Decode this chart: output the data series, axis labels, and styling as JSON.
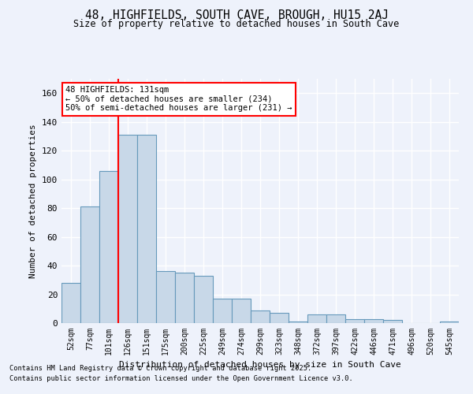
{
  "title1": "48, HIGHFIELDS, SOUTH CAVE, BROUGH, HU15 2AJ",
  "title2": "Size of property relative to detached houses in South Cave",
  "xlabel": "Distribution of detached houses by size in South Cave",
  "ylabel": "Number of detached properties",
  "categories": [
    "52sqm",
    "77sqm",
    "101sqm",
    "126sqm",
    "151sqm",
    "175sqm",
    "200sqm",
    "225sqm",
    "249sqm",
    "274sqm",
    "299sqm",
    "323sqm",
    "348sqm",
    "372sqm",
    "397sqm",
    "422sqm",
    "446sqm",
    "471sqm",
    "496sqm",
    "520sqm",
    "545sqm"
  ],
  "values": [
    28,
    81,
    106,
    131,
    131,
    36,
    35,
    33,
    17,
    17,
    9,
    7,
    1,
    6,
    6,
    3,
    3,
    2,
    0,
    0,
    1
  ],
  "bar_color": "#c8d8e8",
  "bar_edge_color": "#6699bb",
  "red_line_index": 3,
  "annotation_line1": "48 HIGHFIELDS: 131sqm",
  "annotation_line2": "← 50% of detached houses are smaller (234)",
  "annotation_line3": "50% of semi-detached houses are larger (231) →",
  "ylim": [
    0,
    170
  ],
  "yticks": [
    0,
    20,
    40,
    60,
    80,
    100,
    120,
    140,
    160
  ],
  "background_color": "#eef2fb",
  "grid_color": "#ffffff",
  "footer1": "Contains HM Land Registry data © Crown copyright and database right 2025.",
  "footer2": "Contains public sector information licensed under the Open Government Licence v3.0."
}
